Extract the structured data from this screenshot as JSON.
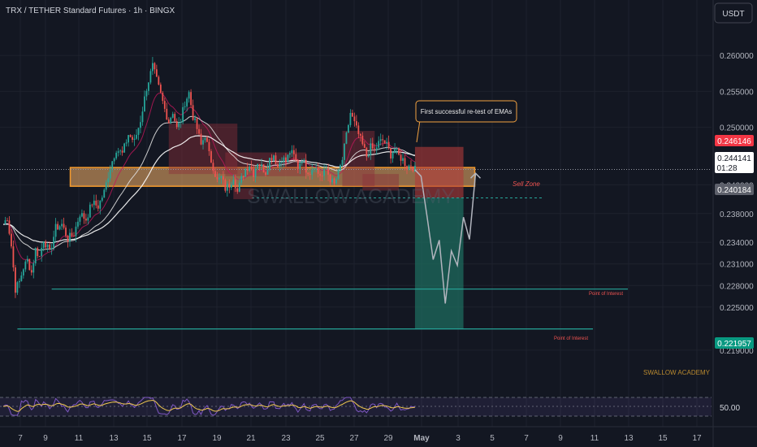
{
  "header": {
    "symbol_title": "TRX / TETHER Standard Futures · 1h · BINGX"
  },
  "currency_button": "USDT",
  "price_axis": {
    "ticks": [
      "0.260000",
      "0.255000",
      "0.250000",
      "0.242000",
      "0.238000",
      "0.234000",
      "0.231000",
      "0.228000",
      "0.225000",
      "0.219000"
    ],
    "tick_values": [
      0.26,
      0.255,
      0.25,
      0.242,
      0.238,
      0.234,
      0.231,
      0.228,
      0.225,
      0.219
    ],
    "labels": {
      "upper_red": "0.246146",
      "current_price": "0.244141",
      "countdown": "01:28",
      "lower_gray": "0.240184",
      "target_green": "0.221957"
    }
  },
  "time_axis": {
    "ticks": [
      "7",
      "9",
      "11",
      "13",
      "15",
      "17",
      "19",
      "21",
      "23",
      "25",
      "27",
      "29",
      "May",
      "3",
      "5",
      "7",
      "9",
      "11",
      "13",
      "15",
      "17"
    ]
  },
  "annotations": {
    "callout": "First successful re-test of EMAs",
    "sell_zone": "Sell Zone",
    "poi_upper": "Point of Interest",
    "poi_lower": "Point of Interest",
    "watermark_center": "SWALLOW ACADEMY",
    "watermark_small": "SWALLOW ACADEMY"
  },
  "rsi_pane": {
    "level_label": "50.00"
  },
  "colors": {
    "background": "#131722",
    "up_candle": "#26a69a",
    "down_candle": "#ef5350",
    "supply_zone": "#f7b26a",
    "sell_box": "#b23a3a",
    "target_box": "#1e6b5e",
    "level_line": "#26a69a",
    "rsi_line": "#7e57c2",
    "rsi_signal": "#f0c850"
  },
  "chart_data": {
    "type": "candlestick",
    "title": "TRX / TETHER Standard Futures · 1h · BINGX",
    "x_axis": [
      "7",
      "9",
      "11",
      "13",
      "15",
      "17",
      "19",
      "21",
      "23",
      "25",
      "27",
      "29",
      "May",
      "3",
      "5",
      "7",
      "9",
      "11",
      "13",
      "15",
      "17"
    ],
    "price_path": [
      [
        0,
        0.2365
      ],
      [
        2,
        0.2375
      ],
      [
        4,
        0.2335
      ],
      [
        6,
        0.2275
      ],
      [
        8,
        0.2285
      ],
      [
        10,
        0.2305
      ],
      [
        12,
        0.2315
      ],
      [
        14,
        0.2298
      ],
      [
        16,
        0.233
      ],
      [
        18,
        0.232
      ],
      [
        20,
        0.2345
      ],
      [
        23,
        0.2325
      ],
      [
        26,
        0.236
      ],
      [
        29,
        0.2365
      ],
      [
        32,
        0.2345
      ],
      [
        35,
        0.2352
      ],
      [
        38,
        0.238
      ],
      [
        41,
        0.2372
      ],
      [
        44,
        0.2395
      ],
      [
        47,
        0.239
      ],
      [
        50,
        0.241
      ],
      [
        53,
        0.2445
      ],
      [
        56,
        0.247
      ],
      [
        59,
        0.2463
      ],
      [
        62,
        0.249
      ],
      [
        65,
        0.248
      ],
      [
        68,
        0.251
      ],
      [
        71,
        0.2555
      ],
      [
        74,
        0.2585
      ],
      [
        76,
        0.2565
      ],
      [
        78,
        0.2545
      ],
      [
        80,
        0.2525
      ],
      [
        82,
        0.2508
      ],
      [
        84,
        0.2522
      ],
      [
        86,
        0.2498
      ],
      [
        88,
        0.251
      ],
      [
        90,
        0.2535
      ],
      [
        92,
        0.2548
      ],
      [
        94,
        0.2515
      ],
      [
        96,
        0.2498
      ],
      [
        98,
        0.2475
      ],
      [
        100,
        0.249
      ],
      [
        102,
        0.2462
      ],
      [
        104,
        0.2445
      ],
      [
        106,
        0.2425
      ],
      [
        108,
        0.243
      ],
      [
        110,
        0.2415
      ],
      [
        112,
        0.242
      ],
      [
        114,
        0.2432
      ],
      [
        116,
        0.241
      ],
      [
        118,
        0.2428
      ],
      [
        120,
        0.2442
      ],
      [
        122,
        0.2448
      ],
      [
        124,
        0.2436
      ],
      [
        126,
        0.2452
      ],
      [
        128,
        0.2445
      ],
      [
        130,
        0.2438
      ],
      [
        132,
        0.2456
      ],
      [
        134,
        0.2462
      ],
      [
        136,
        0.2445
      ],
      [
        138,
        0.2458
      ],
      [
        140,
        0.2452
      ],
      [
        142,
        0.2466
      ],
      [
        144,
        0.246
      ],
      [
        146,
        0.2445
      ],
      [
        148,
        0.2458
      ],
      [
        150,
        0.2442
      ],
      [
        152,
        0.2438
      ],
      [
        154,
        0.2448
      ],
      [
        156,
        0.2436
      ],
      [
        158,
        0.2432
      ],
      [
        160,
        0.2442
      ],
      [
        162,
        0.2428
      ],
      [
        164,
        0.242
      ],
      [
        166,
        0.2436
      ],
      [
        168,
        0.2455
      ],
      [
        170,
        0.2488
      ],
      [
        172,
        0.252
      ],
      [
        174,
        0.2505
      ],
      [
        176,
        0.249
      ],
      [
        178,
        0.2475
      ],
      [
        180,
        0.246
      ],
      [
        182,
        0.2472
      ],
      [
        184,
        0.2468
      ],
      [
        186,
        0.2478
      ],
      [
        188,
        0.2482
      ],
      [
        190,
        0.2475
      ],
      [
        192,
        0.2462
      ],
      [
        194,
        0.247
      ],
      [
        196,
        0.246
      ],
      [
        198,
        0.2455
      ],
      [
        200,
        0.2445
      ],
      [
        202,
        0.2448
      ],
      [
        204,
        0.2441
      ]
    ],
    "projection_path": [
      [
        204,
        0.2441
      ],
      [
        207,
        0.2432
      ],
      [
        210,
        0.2375
      ],
      [
        213,
        0.2316
      ],
      [
        216,
        0.2343
      ],
      [
        219,
        0.2255
      ],
      [
        222,
        0.2328
      ],
      [
        225,
        0.2308
      ],
      [
        228,
        0.2375
      ],
      [
        231,
        0.2344
      ],
      [
        234,
        0.2436
      ]
    ],
    "supply_zone": {
      "from_index": 32,
      "to_index": 234,
      "top": 0.2444,
      "bottom": 0.2418
    },
    "sell_position": {
      "from_index": 204,
      "to_index": 228,
      "entry": 0.24018,
      "stop": 0.24614,
      "target": 0.221957
    },
    "levels": [
      {
        "label": "Point of Interest",
        "value": 0.2275
      },
      {
        "label": "Point of Interest",
        "value": 0.221957
      }
    ],
    "ylim": [
      0.2165,
      0.2625
    ],
    "xlabel": "",
    "ylabel": ""
  }
}
